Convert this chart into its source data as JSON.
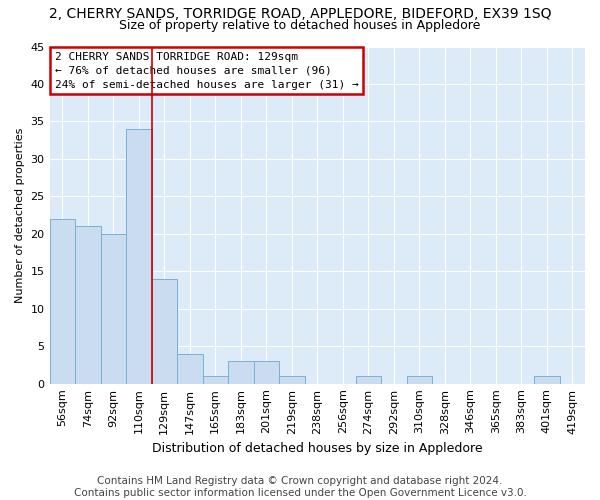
{
  "title": "2, CHERRY SANDS, TORRIDGE ROAD, APPLEDORE, BIDEFORD, EX39 1SQ",
  "subtitle": "Size of property relative to detached houses in Appledore",
  "xlabel": "Distribution of detached houses by size in Appledore",
  "ylabel": "Number of detached properties",
  "categories": [
    "56sqm",
    "74sqm",
    "92sqm",
    "110sqm",
    "129sqm",
    "147sqm",
    "165sqm",
    "183sqm",
    "201sqm",
    "219sqm",
    "238sqm",
    "256sqm",
    "274sqm",
    "292sqm",
    "310sqm",
    "328sqm",
    "346sqm",
    "365sqm",
    "383sqm",
    "401sqm",
    "419sqm"
  ],
  "values": [
    22,
    21,
    20,
    34,
    14,
    4,
    1,
    3,
    3,
    1,
    0,
    0,
    1,
    0,
    1,
    0,
    0,
    0,
    0,
    1,
    0
  ],
  "bar_color": "#c9dcf0",
  "bar_edge_color": "#7aafd4",
  "vline_color": "#cc0000",
  "vline_index": 4,
  "annotation_text": "2 CHERRY SANDS TORRIDGE ROAD: 129sqm\n← 76% of detached houses are smaller (96)\n24% of semi-detached houses are larger (31) →",
  "annotation_box_color": "#ffffff",
  "annotation_box_edge": "#cc0000",
  "ylim": [
    0,
    45
  ],
  "yticks": [
    0,
    5,
    10,
    15,
    20,
    25,
    30,
    35,
    40,
    45
  ],
  "background_color": "#ddeaf8",
  "grid_color": "#ffffff",
  "footer": "Contains HM Land Registry data © Crown copyright and database right 2024.\nContains public sector information licensed under the Open Government Licence v3.0.",
  "title_fontsize": 10,
  "subtitle_fontsize": 9,
  "xlabel_fontsize": 9,
  "ylabel_fontsize": 8,
  "tick_fontsize": 8,
  "footer_fontsize": 7.5
}
